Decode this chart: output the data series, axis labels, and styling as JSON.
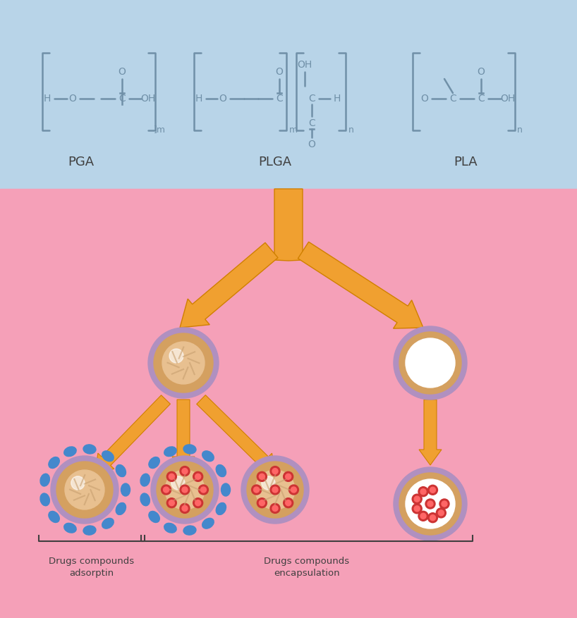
{
  "top_bg_color": "#b8d4e8",
  "bottom_bg_color": "#f5a0b8",
  "arrow_color": "#f0a030",
  "arrow_edge_color": "#d08000",
  "nanoparticle_outer_color": "#b090c0",
  "nanoparticle_inner_color": "#d4a060",
  "nanoparticle_core_color": "#e8c090",
  "blue_dot_color": "#4488cc",
  "red_dot_color": "#cc3333",
  "white_core_color": "#ffffff",
  "text_color": "#404040",
  "bracket_color": "#7090a8",
  "labels": [
    "PGA",
    "PLGA",
    "PLA"
  ],
  "bottom_labels": [
    "Drugs compounds\nadsorptin",
    "Drugs compounds\nencapsulation"
  ]
}
